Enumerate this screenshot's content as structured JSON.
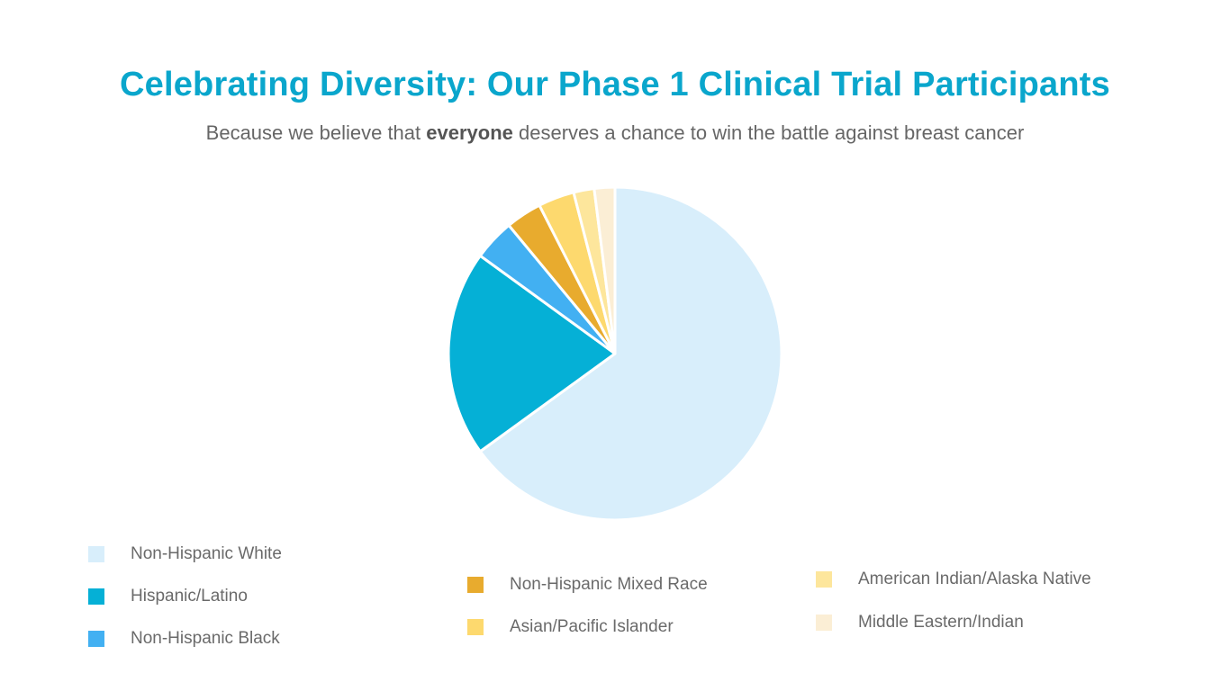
{
  "title": "Celebrating Diversity: Our Phase 1 Clinical Trial Participants",
  "subtitle": {
    "before": "Because we believe that ",
    "bold": "everyone",
    "after": " deserves a chance to win the battle against breast cancer"
  },
  "chart_data": {
    "type": "pie",
    "start": "12 o'clock",
    "direction": "clockwise",
    "unit": "percent (estimated)",
    "slices": [
      {
        "label": "Non-Hispanic White",
        "value": 65.0,
        "color": "#d8eefb"
      },
      {
        "label": "Hispanic/Latino",
        "value": 20.0,
        "color": "#05b0d6"
      },
      {
        "label": "Non-Hispanic Black",
        "value": 4.0,
        "color": "#42b0f2"
      },
      {
        "label": "Non-Hispanic Mixed Race",
        "value": 3.5,
        "color": "#e8ab2e"
      },
      {
        "label": "Asian/Pacific Islander",
        "value": 3.5,
        "color": "#fdd96e"
      },
      {
        "label": "American Indian/Alaska Native",
        "value": 2.0,
        "color": "#fde69c"
      },
      {
        "label": "Middle Eastern/Indian",
        "value": 2.0,
        "color": "#fbeed5"
      }
    ],
    "legend": [
      "Non-Hispanic White",
      "Hispanic/Latino",
      "Non-Hispanic Black",
      "Non-Hispanic Mixed Race",
      "Asian/Pacific Islander",
      "American Indian/Alaska Native",
      "Middle Eastern/Indian"
    ],
    "legend_placement": "bottom"
  }
}
